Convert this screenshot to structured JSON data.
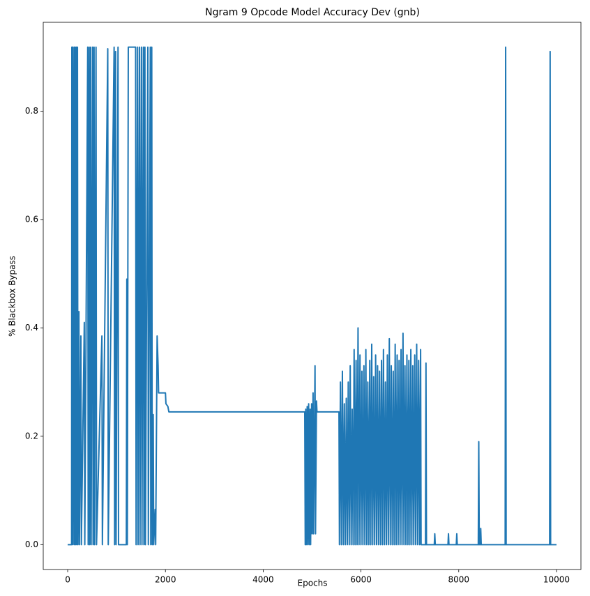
{
  "chart_data": {
    "type": "line",
    "title": "Ngram 9 Opcode Model Accuracy Dev (gnb)",
    "x_label": "Epochs",
    "y_label": "% Blackbox Bypass",
    "xlim": [
      -500,
      10500
    ],
    "ylim": [
      -0.0459,
      0.9639
    ],
    "xticks": [
      0,
      2000,
      4000,
      6000,
      8000,
      10000
    ],
    "yticks": [
      {
        "value": 0,
        "label": "0.0"
      },
      0.2,
      0.4,
      0.6,
      0.8
    ],
    "grid": false,
    "series": [
      {
        "color": "#1f77b4",
        "x": [
          0,
          80,
          85,
          100,
          105,
          130,
          135,
          150,
          160,
          175,
          185,
          200,
          210,
          230,
          240,
          270,
          280,
          340,
          350,
          410,
          420,
          440,
          450,
          470,
          480,
          510,
          520,
          540,
          550,
          580,
          590,
          700,
          710,
          820,
          830,
          950,
          960,
          980,
          990,
          1030,
          1040,
          1200,
          1210,
          1220,
          1240,
          1390,
          1400,
          1430,
          1440,
          1470,
          1480,
          1510,
          1520,
          1550,
          1560,
          1580,
          1590,
          1640,
          1650,
          1690,
          1700,
          1720,
          1730,
          1750,
          1760,
          1790,
          1800,
          1830,
          1850,
          1860,
          2000,
          2010,
          2050,
          2070,
          4850,
          4860,
          4870,
          4880,
          4900,
          4910,
          4930,
          4940,
          4960,
          4970,
          4990,
          5000,
          5020,
          5030,
          5060,
          5070,
          5090,
          5100,
          5550,
          5560,
          5580,
          5600,
          5620,
          5640,
          5660,
          5680,
          5700,
          5720,
          5740,
          5760,
          5780,
          5800,
          5820,
          5840,
          5860,
          5880,
          5900,
          5920,
          5940,
          5960,
          5980,
          6000,
          6020,
          6040,
          6060,
          6080,
          6100,
          6120,
          6140,
          6160,
          6180,
          6200,
          6220,
          6240,
          6260,
          6280,
          6300,
          6320,
          6340,
          6360,
          6380,
          6400,
          6420,
          6440,
          6460,
          6480,
          6500,
          6520,
          6540,
          6560,
          6580,
          6600,
          6620,
          6640,
          6660,
          6680,
          6700,
          6720,
          6740,
          6760,
          6780,
          6800,
          6820,
          6840,
          6860,
          6880,
          6900,
          6920,
          6940,
          6960,
          6980,
          7000,
          7020,
          7040,
          7060,
          7080,
          7100,
          7120,
          7140,
          7160,
          7180,
          7200,
          7220,
          7230,
          7320,
          7330,
          7340,
          7500,
          7510,
          7520,
          7780,
          7790,
          7800,
          7950,
          7960,
          7970,
          8400,
          8410,
          8420,
          8440,
          8450,
          8460,
          8950,
          8960,
          8970,
          9860,
          9870,
          9880,
          10000
        ],
        "values": [
          0,
          0,
          0.918,
          0.918,
          0,
          0.918,
          0,
          0.918,
          0,
          0.918,
          0,
          0.918,
          0,
          0.43,
          0,
          0.385,
          0,
          0.41,
          0,
          0.918,
          0,
          0.918,
          0,
          0.918,
          0,
          0.918,
          0,
          0.918,
          0,
          0.918,
          0,
          0.385,
          0,
          0.915,
          0,
          0.918,
          0,
          0.91,
          0,
          0.918,
          0,
          0,
          0.49,
          0,
          0.918,
          0.918,
          0,
          0.918,
          0,
          0.918,
          0,
          0.918,
          0,
          0.918,
          0,
          0.918,
          0,
          0.918,
          0,
          0.918,
          0,
          0.918,
          0,
          0.24,
          0,
          0.065,
          0,
          0.385,
          0.33,
          0.28,
          0.28,
          0.26,
          0.255,
          0.245,
          0.245,
          0,
          0.25,
          0,
          0.255,
          0,
          0.26,
          0,
          0.25,
          0,
          0.26,
          0.02,
          0.28,
          0.02,
          0.33,
          0.02,
          0.265,
          0.245,
          0.245,
          0,
          0.3,
          0,
          0.32,
          0,
          0.26,
          0,
          0.27,
          0,
          0.3,
          0,
          0.33,
          0,
          0.25,
          0,
          0.36,
          0,
          0.34,
          0,
          0.4,
          0,
          0.35,
          0,
          0.32,
          0,
          0.33,
          0,
          0.36,
          0,
          0.3,
          0,
          0.34,
          0,
          0.37,
          0,
          0.31,
          0,
          0.35,
          0,
          0.33,
          0,
          0.32,
          0,
          0.34,
          0,
          0.36,
          0,
          0.3,
          0,
          0.35,
          0,
          0.38,
          0,
          0.33,
          0,
          0.32,
          0,
          0.37,
          0,
          0.35,
          0,
          0.34,
          0,
          0.36,
          0,
          0.39,
          0,
          0.33,
          0,
          0.35,
          0,
          0.34,
          0,
          0.36,
          0,
          0.33,
          0,
          0.35,
          0,
          0.37,
          0,
          0.34,
          0,
          0.36,
          0,
          0,
          0.335,
          0,
          0,
          0.02,
          0,
          0,
          0.02,
          0,
          0,
          0.02,
          0,
          0,
          0.19,
          0,
          0,
          0.03,
          0,
          0,
          0.918,
          0,
          0,
          0.91,
          0,
          0
        ]
      }
    ]
  }
}
